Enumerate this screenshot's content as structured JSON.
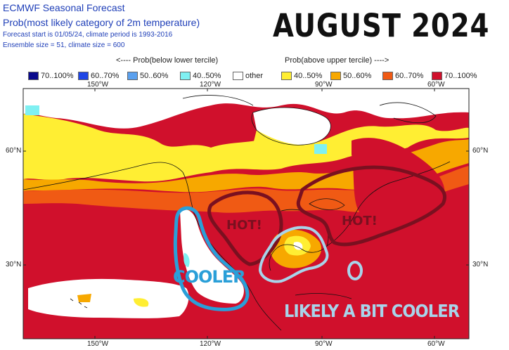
{
  "header": {
    "line1": "ECMWF Seasonal Forecast",
    "line2": "Prob(most likely category of 2m temperature)",
    "line3": "Forecast start is 01/05/24, climate period is 1993-2016",
    "line4": "Ensemble size = 51, climate size = 600"
  },
  "month_title": "AUGUST 2024",
  "legend": {
    "left_heading": "<---- Prob(below lower tercile)",
    "right_heading": "Prob(above upper tercile) ---->",
    "items": [
      {
        "label": "70..100%",
        "color": "#0a0a8c"
      },
      {
        "label": "60..70%",
        "color": "#1e46e6"
      },
      {
        "label": "50..60%",
        "color": "#5aa0ee"
      },
      {
        "label": "40..50%",
        "color": "#7ff0f2"
      },
      {
        "label": "other",
        "color": "#ffffff"
      },
      {
        "label": "40..50%",
        "color": "#ffee33"
      },
      {
        "label": "50..60%",
        "color": "#f7a800"
      },
      {
        "label": "60..70%",
        "color": "#f05a14"
      },
      {
        "label": "70..100%",
        "color": "#d0102c"
      }
    ]
  },
  "axes": {
    "lon_top": [
      "150°W",
      "120°W",
      "90°W",
      "60°W"
    ],
    "lon_bottom": [
      "150°W",
      "120°W",
      "90°W",
      "60°W"
    ],
    "lat_left": [
      "60°N",
      "30°N"
    ],
    "lat_right": [
      "60°N",
      "30°N"
    ]
  },
  "annotations": {
    "hot_west": "HOT!",
    "hot_east": "HOT!",
    "cooler": "COOLER",
    "likely_cooler": "LIKELY A BIT COOLER"
  },
  "annotation_colors": {
    "hot_outline": "#7a1020",
    "cooler_outline": "#2a9fd8",
    "gulf_outline": "#a8d4ea"
  }
}
